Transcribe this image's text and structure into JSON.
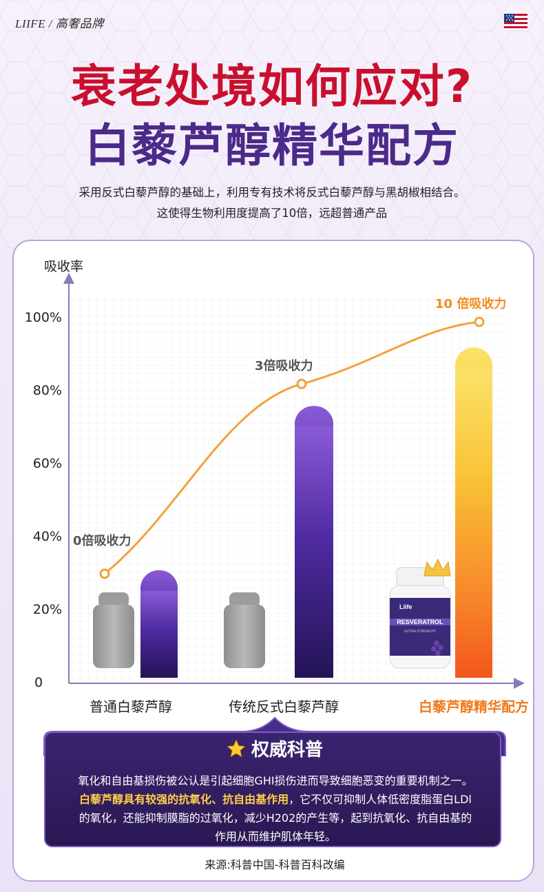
{
  "brand": "LIIFE / 高奢品牌",
  "title_line1": "衰老处境如何应对?",
  "title_line2": "白藜芦醇精华配方",
  "intro_line1": "采用反式白藜芦醇的基础上，利用专有技术将反式白藜芦醇与黑胡椒相结合。",
  "intro_line2": "这使得生物利用度提高了10倍，远超普通产品",
  "colors": {
    "title_red": "#c8102e",
    "title_purple": "#4b2a8a",
    "highlight_orange": "#f07a1c",
    "line_orange": "#f2a23a",
    "bar_purple": "#5a34b0",
    "bar_gold": "#f5c233",
    "info_bg": "#2a1853",
    "info_emphasis": "#ffd04a"
  },
  "chart_data": {
    "type": "bar",
    "ylabel": "吸收率",
    "yticks": [
      "0",
      "20%",
      "40%",
      "60%",
      "80%",
      "100%"
    ],
    "ylim": [
      0,
      100
    ],
    "categories": [
      "普通白藜芦醇",
      "传统反式白藜芦醇",
      "白藜芦醇精华配方"
    ],
    "highlight_category_index": 2,
    "series": [
      {
        "values": [
          31,
          76,
          92
        ]
      }
    ],
    "line": {
      "values": [
        30,
        82,
        99
      ],
      "labels": [
        "0倍吸收力",
        "3倍吸收力",
        "10 倍吸收力"
      ]
    },
    "legend": "none",
    "grid": true
  },
  "product": {
    "brand_mark": "Liife",
    "name": "RESVERATROL",
    "subtitle": "EXTRA STRENGTH"
  },
  "info": {
    "title": "权威科普",
    "line1": "氧化和自由基损伤被公认是引起细胞GHI损伤进而导致细胞恶变的重要机制之一。",
    "line2_em": "白藜芦醇具有较强的抗氧化、抗自由基作用",
    "line2_rest": "，它不仅可抑制人体低密度脂蛋白LDl",
    "line3": "的氧化，还能抑制膜脂的过氧化，减少H202的产生等，起到抗氧化、抗自由基的",
    "line4": "作用从而维护肌体年轻。",
    "source": "来源:科普中国-科普百科改编"
  }
}
